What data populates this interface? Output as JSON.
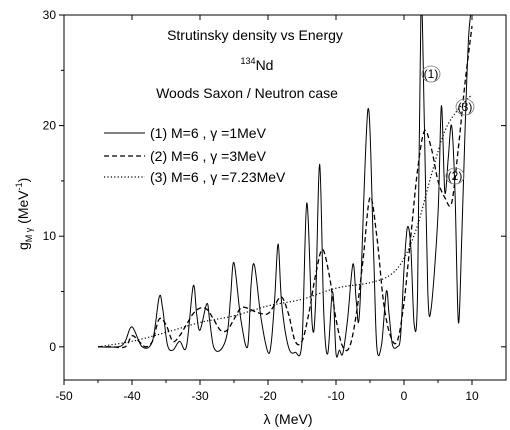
{
  "chart_data": {
    "type": "line",
    "title": "Strutinsky density vs Energy",
    "subtitle_sup": "134",
    "subtitle": "Nd",
    "subtitle2": "Woods Saxon / Neutron case",
    "xlabel": "λ (MeV)",
    "ylabel": {
      "base": "g",
      "sub": "M γ",
      "unit_open": " (MeV",
      "unit_sup": "-1",
      "unit_close": ")"
    },
    "xlim": [
      -50,
      15
    ],
    "ylim": [
      -3,
      30
    ],
    "x_ticks": [
      -50,
      -40,
      -30,
      -20,
      -10,
      0,
      10
    ],
    "x_tick_labels": [
      "-50",
      "-40",
      "-30",
      "-20",
      "-10",
      "0",
      "10"
    ],
    "y_ticks": [
      0,
      10,
      20,
      30
    ],
    "y_tick_labels": [
      "0",
      "10",
      "20",
      "30"
    ],
    "grid": false,
    "legend_position": "middle-left",
    "series": [
      {
        "name": "(1) M=6 , γ =1MeV",
        "style": "solid",
        "color": "#000000",
        "x": [
          -45,
          -42,
          -41,
          -40,
          -38.5,
          -37,
          -36,
          -35.5,
          -34.8,
          -34,
          -33,
          -32,
          -31,
          -30.5,
          -30,
          -29,
          -28.6,
          -28,
          -27,
          -26,
          -25.5,
          -25,
          -24,
          -23,
          -22.5,
          -22,
          -21,
          -20,
          -19.5,
          -19,
          -18.5,
          -18,
          -17,
          -16,
          -15,
          -14.3,
          -13.5,
          -13,
          -12.4,
          -11.8,
          -11.2,
          -10.5,
          -10,
          -9.5,
          -9,
          -8.3,
          -7.5,
          -7,
          -6.5,
          -5.3,
          -4.5,
          -4,
          -3.3,
          -2.6,
          -2.2,
          -1.7,
          -1,
          -0.5,
          0,
          0.5,
          1,
          1.5,
          2,
          2.5,
          3,
          3.5,
          4,
          5,
          5.5,
          6,
          6.5,
          7,
          7.5,
          8,
          8.5,
          9,
          9.5,
          10
        ],
        "y": [
          0,
          0,
          0.5,
          1.8,
          0,
          0.5,
          4.5,
          3.5,
          0.2,
          -0.3,
          0.5,
          0,
          5.5,
          3,
          1.5,
          3.9,
          2.5,
          0,
          -0.3,
          1.2,
          4.5,
          7.6,
          2.5,
          0,
          5.5,
          7.4,
          2.5,
          -0.5,
          0.5,
          4.5,
          9.3,
          4,
          0,
          -0.5,
          0.5,
          13,
          2,
          4,
          16.5,
          3,
          -0.6,
          5,
          -0.6,
          -0.3,
          -0.6,
          2.5,
          7.5,
          4,
          3.5,
          21.5,
          9,
          0,
          0.2,
          5,
          3,
          0.2,
          0,
          1,
          7,
          10.8,
          9,
          2,
          5,
          31,
          20,
          5,
          3.5,
          12,
          21.8,
          14,
          17,
          20,
          14,
          2.2,
          10,
          20,
          28,
          31
        ]
      },
      {
        "name": "(2) M=6 , γ =3MeV",
        "style": "dashed",
        "color": "#000000",
        "x": [
          -45,
          -43,
          -41,
          -40,
          -39,
          -38,
          -37,
          -36,
          -35,
          -34,
          -33,
          -32,
          -31,
          -30,
          -29,
          -28,
          -27,
          -26,
          -25,
          -24,
          -23,
          -22,
          -21,
          -20,
          -19,
          -18,
          -17,
          -16,
          -15,
          -14,
          -13,
          -12,
          -11,
          -10,
          -9,
          -8,
          -7,
          -6,
          -5,
          -4,
          -3,
          -2,
          -1,
          0,
          1,
          2,
          3,
          4,
          5,
          6,
          7,
          8,
          9,
          10
        ],
        "y": [
          0,
          0,
          0,
          1,
          0.5,
          0,
          0.5,
          2.5,
          2,
          0.5,
          1,
          2,
          3,
          3.5,
          3.4,
          2.5,
          1.5,
          1.5,
          2.5,
          3.5,
          3.5,
          3.2,
          3,
          3,
          3.8,
          4.5,
          3,
          0.5,
          0.5,
          3,
          6.5,
          8.8,
          6.5,
          2.5,
          0,
          0,
          3,
          8,
          13.5,
          10,
          4,
          1,
          0.5,
          4,
          10,
          16,
          19.5,
          18,
          15,
          13.5,
          13,
          18,
          24,
          29
        ]
      },
      {
        "name": "(3) M=6 , γ =7.23MeV",
        "style": "dotted",
        "color": "#000000",
        "x": [
          -45,
          -40,
          -35,
          -30,
          -25,
          -20,
          -15,
          -10,
          -5,
          -2,
          0,
          2,
          4,
          6,
          8,
          10
        ],
        "y": [
          0,
          0.5,
          1.3,
          2.2,
          2.8,
          3.7,
          4.3,
          5.3,
          5.8,
          6.5,
          8,
          11,
          15.5,
          19.5,
          21.5,
          22.8
        ]
      }
    ],
    "annotations": [
      "(1)",
      "(2)",
      "(3)"
    ]
  }
}
